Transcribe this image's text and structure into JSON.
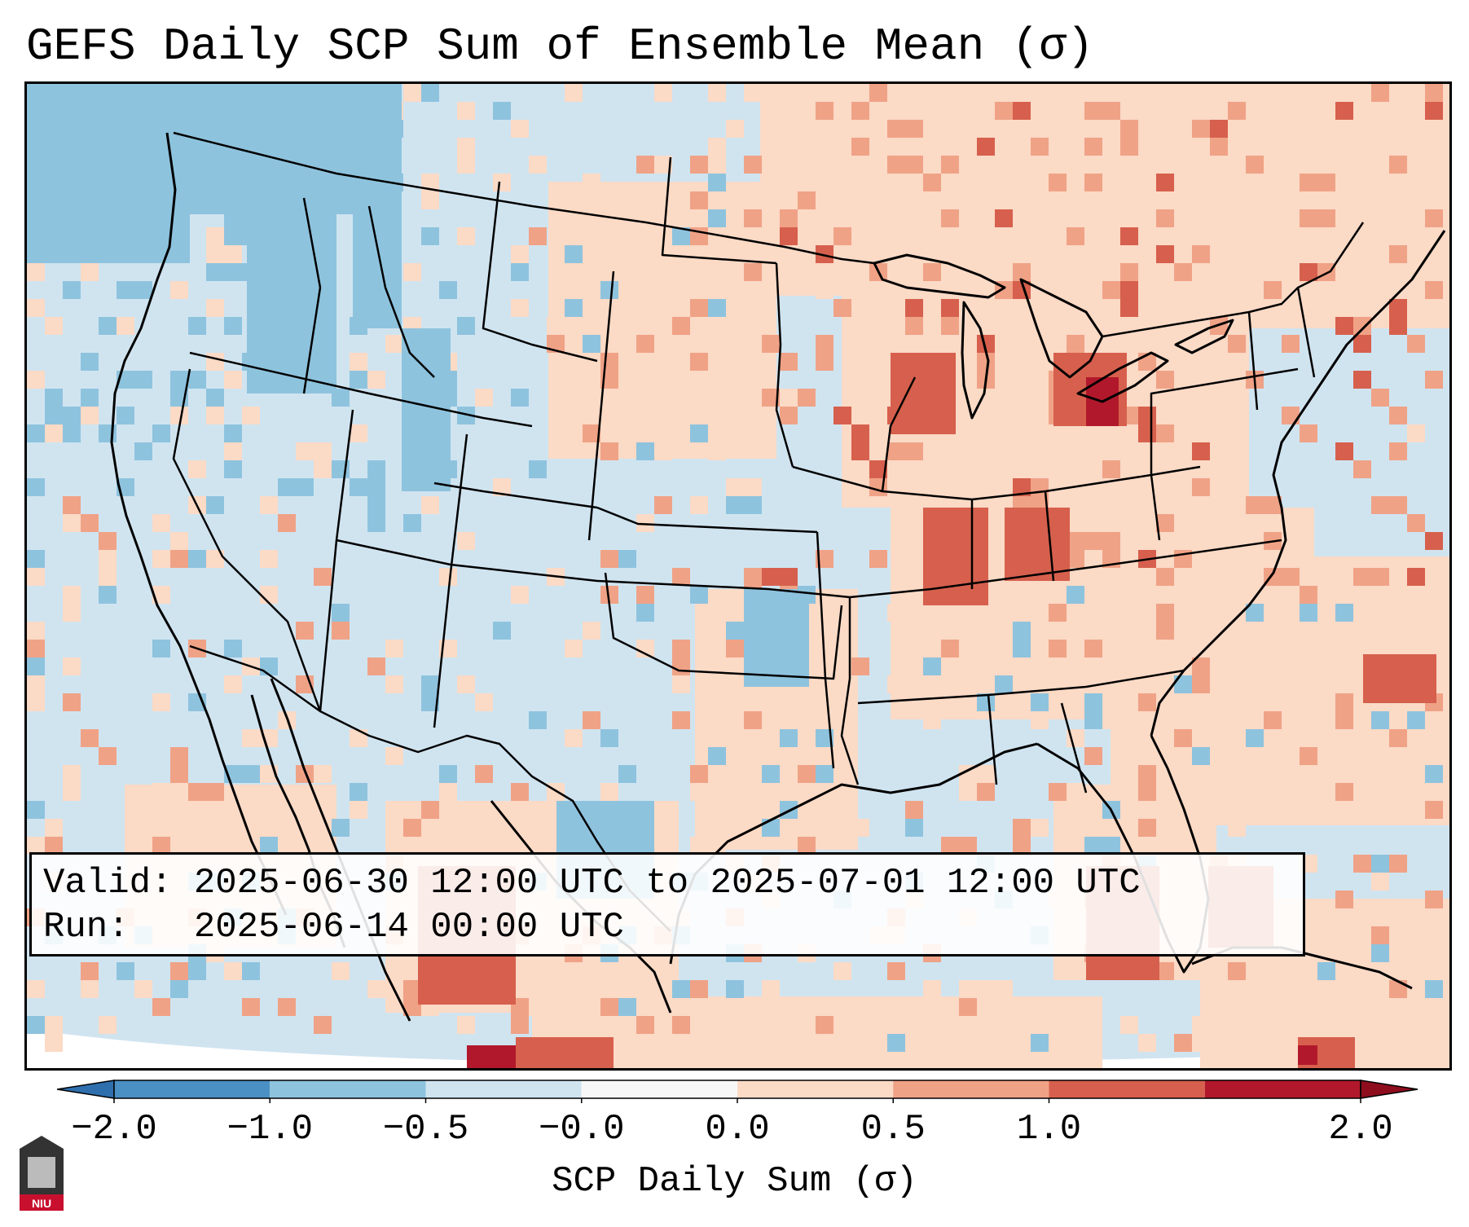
{
  "title": "GEFS Daily SCP Sum of Ensemble Mean (σ)",
  "info": {
    "valid_label": "Valid:",
    "valid_text": "2025-06-30 12:00 UTC to 2025-07-01 12:00 UTC",
    "run_label": "Run:",
    "run_text": "2025-06-14 00:00 UTC"
  },
  "colorbar": {
    "label": "SCP Daily Sum (σ)",
    "ticks": [
      "−2.0",
      "−1.0",
      "−0.5",
      "−0.0",
      "0.0",
      "0.5",
      "1.0",
      "2.0"
    ],
    "colors": [
      "#4a90c4",
      "#8ec3de",
      "#d0e4f0",
      "#f7f7f7",
      "#fbdac6",
      "#f0a286",
      "#d6604d",
      "#b2182b"
    ],
    "under_color": "#2f6fae",
    "over_color": "#8e0e1e"
  },
  "logo": {
    "text": "NIU"
  }
}
